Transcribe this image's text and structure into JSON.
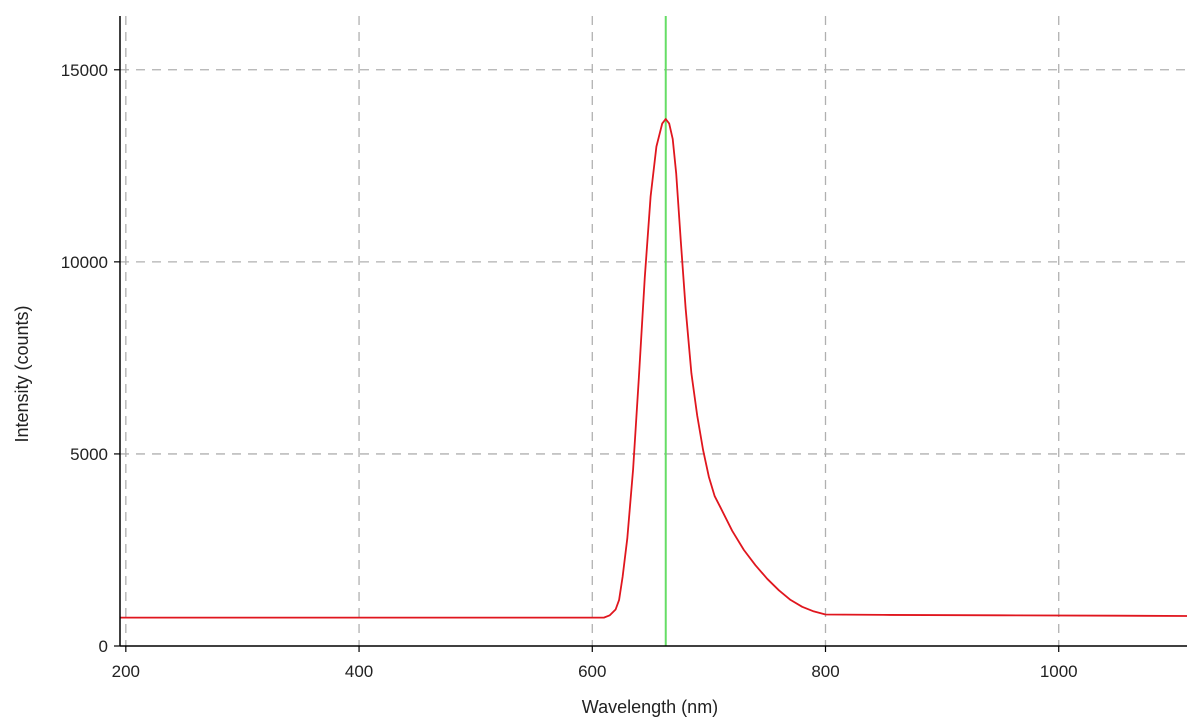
{
  "chart_data": {
    "type": "line",
    "xlabel": "Wavelength (nm)",
    "ylabel": "Intensity (counts)",
    "xlim": [
      195,
      1110
    ],
    "ylim": [
      0,
      16400
    ],
    "x_ticks": [
      200,
      400,
      600,
      800,
      1000
    ],
    "y_ticks": [
      0,
      5000,
      10000,
      15000
    ],
    "grid": true,
    "series": [
      {
        "color": "#e0161e",
        "points": [
          [
            195,
            740
          ],
          [
            300,
            740
          ],
          [
            400,
            740
          ],
          [
            500,
            740
          ],
          [
            610,
            740
          ],
          [
            615,
            800
          ],
          [
            620,
            950
          ],
          [
            623,
            1200
          ],
          [
            626,
            1800
          ],
          [
            630,
            2800
          ],
          [
            635,
            4600
          ],
          [
            640,
            7000
          ],
          [
            645,
            9600
          ],
          [
            650,
            11700
          ],
          [
            655,
            13000
          ],
          [
            660,
            13600
          ],
          [
            663,
            13720
          ],
          [
            666,
            13600
          ],
          [
            669,
            13200
          ],
          [
            672,
            12300
          ],
          [
            676,
            10500
          ],
          [
            680,
            8800
          ],
          [
            685,
            7100
          ],
          [
            690,
            6000
          ],
          [
            695,
            5100
          ],
          [
            700,
            4400
          ],
          [
            705,
            3900
          ],
          [
            710,
            3600
          ],
          [
            720,
            3000
          ],
          [
            730,
            2500
          ],
          [
            740,
            2100
          ],
          [
            750,
            1750
          ],
          [
            760,
            1450
          ],
          [
            770,
            1200
          ],
          [
            780,
            1020
          ],
          [
            790,
            900
          ],
          [
            800,
            820
          ],
          [
            850,
            810
          ],
          [
            950,
            800
          ],
          [
            1050,
            790
          ],
          [
            1110,
            780
          ]
        ]
      }
    ],
    "marker_line": {
      "x": 663,
      "color": "#66dd66"
    }
  }
}
